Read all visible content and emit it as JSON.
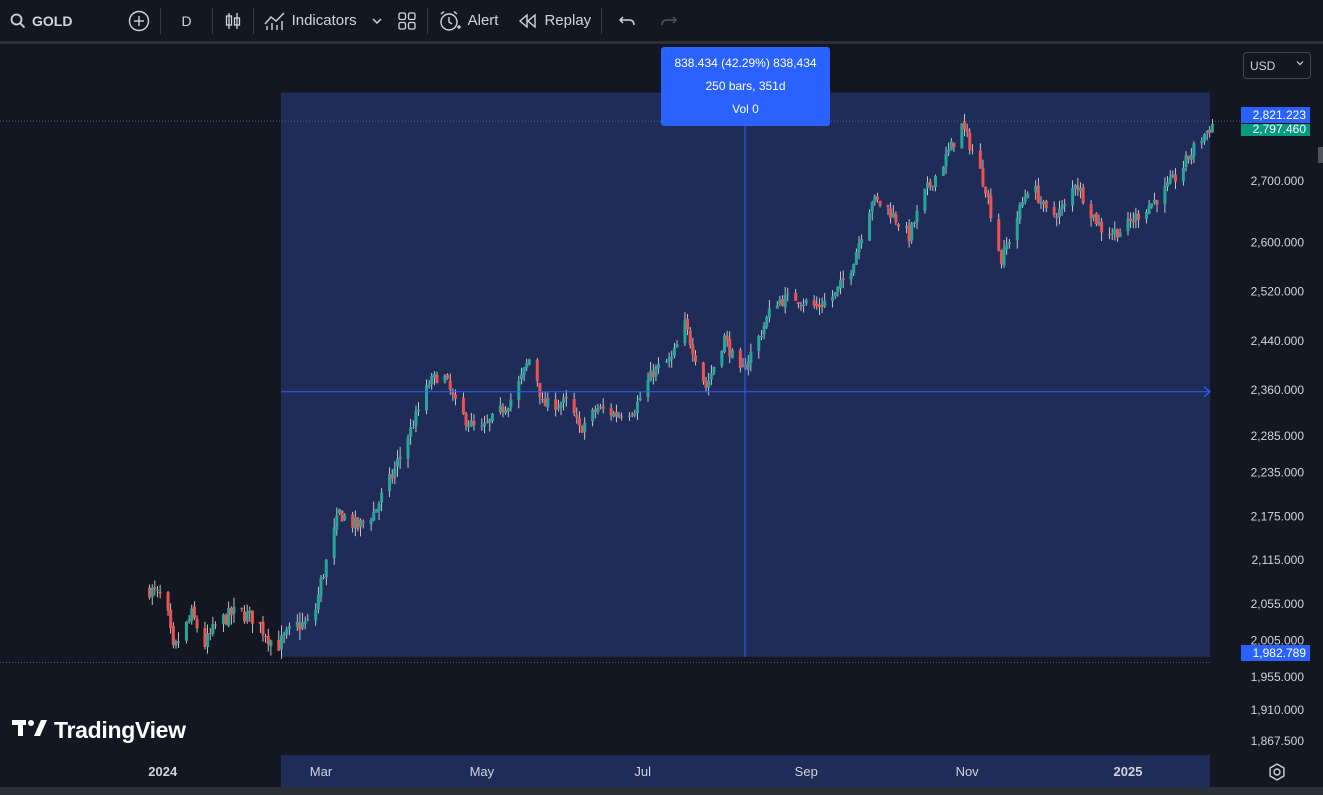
{
  "toolbar": {
    "symbol": "GOLD",
    "interval": "D",
    "indicators_label": "Indicators",
    "alert_label": "Alert",
    "replay_label": "Replay",
    "icons": [
      "search-icon",
      "plus-circle-icon",
      "candles-icon",
      "indicators-icon",
      "chevron-down-icon",
      "layout-grid-icon",
      "alert-clock-icon",
      "replay-icon",
      "undo-icon",
      "redo-icon"
    ]
  },
  "currency": "USD",
  "measure": {
    "line1": "838.434 (42.29%) 838,434",
    "line2": "250 bars, 351d",
    "line3": "Vol 0"
  },
  "price_tags": {
    "upper": "2,821.223",
    "last": "2,797.460",
    "lower": "1,982.789"
  },
  "logo_text": "TradingView",
  "colors": {
    "background": "#131722",
    "up": "#26a69a",
    "down": "#ef5350",
    "selection": "#1e2c57",
    "accent": "#2962ff"
  },
  "chart_data": {
    "type": "candlestick",
    "price_axis_ticks": [
      "2,700.000",
      "2,600.000",
      "2,520.000",
      "2,440.000",
      "2,360.000",
      "2,285.000",
      "2,235.000",
      "2,175.000",
      "2,115.000",
      "2,055.000",
      "2,005.000",
      "1,955.000",
      "1,910.000",
      "1,867.500"
    ],
    "time_axis_labels": [
      "2024",
      "Mar",
      "May",
      "Jul",
      "Sep",
      "Nov",
      "2025"
    ],
    "measure_range": {
      "from": 1982.789,
      "to": 2821.223
    },
    "close_path": [
      [
        "2023-12-27",
        2075
      ],
      [
        "2024-01-02",
        2060
      ],
      [
        "2024-01-05",
        1990
      ],
      [
        "2024-01-12",
        2040
      ],
      [
        "2024-01-17",
        2000
      ],
      [
        "2024-01-22",
        2030
      ],
      [
        "2024-01-29",
        2045
      ],
      [
        "2024-02-05",
        2035
      ],
      [
        "2024-02-13",
        1995
      ],
      [
        "2024-02-20",
        2025
      ],
      [
        "2024-02-27",
        2030
      ],
      [
        "2024-03-01",
        2085
      ],
      [
        "2024-03-08",
        2180
      ],
      [
        "2024-03-15",
        2160
      ],
      [
        "2024-03-21",
        2180
      ],
      [
        "2024-03-28",
        2230
      ],
      [
        "2024-04-04",
        2295
      ],
      [
        "2024-04-11",
        2370
      ],
      [
        "2024-04-16",
        2390
      ],
      [
        "2024-04-22",
        2325
      ],
      [
        "2024-04-30",
        2290
      ],
      [
        "2024-05-07",
        2320
      ],
      [
        "2024-05-13",
        2350
      ],
      [
        "2024-05-20",
        2420
      ],
      [
        "2024-05-24",
        2335
      ],
      [
        "2024-06-03",
        2340
      ],
      [
        "2024-06-07",
        2295
      ],
      [
        "2024-06-14",
        2330
      ],
      [
        "2024-06-21",
        2320
      ],
      [
        "2024-06-28",
        2330
      ],
      [
        "2024-07-05",
        2390
      ],
      [
        "2024-07-12",
        2410
      ],
      [
        "2024-07-17",
        2465
      ],
      [
        "2024-07-25",
        2365
      ],
      [
        "2024-08-01",
        2445
      ],
      [
        "2024-08-07",
        2385
      ],
      [
        "2024-08-14",
        2445
      ],
      [
        "2024-08-20",
        2505
      ],
      [
        "2024-08-28",
        2510
      ],
      [
        "2024-09-05",
        2495
      ],
      [
        "2024-09-12",
        2515
      ],
      [
        "2024-09-18",
        2560
      ],
      [
        "2024-09-26",
        2670
      ],
      [
        "2024-10-02",
        2655
      ],
      [
        "2024-10-10",
        2610
      ],
      [
        "2024-10-16",
        2680
      ],
      [
        "2024-10-23",
        2730
      ],
      [
        "2024-10-30",
        2790
      ],
      [
        "2024-11-04",
        2740
      ],
      [
        "2024-11-08",
        2690
      ],
      [
        "2024-11-14",
        2570
      ],
      [
        "2024-11-19",
        2630
      ],
      [
        "2024-11-25",
        2700
      ],
      [
        "2024-12-02",
        2640
      ],
      [
        "2024-12-09",
        2660
      ],
      [
        "2024-12-12",
        2700
      ],
      [
        "2024-12-18",
        2650
      ],
      [
        "2024-12-23",
        2615
      ],
      [
        "2024-12-30",
        2620
      ],
      [
        "2025-01-06",
        2650
      ],
      [
        "2025-01-13",
        2675
      ],
      [
        "2025-01-20",
        2710
      ],
      [
        "2025-01-27",
        2760
      ],
      [
        "2025-02-03",
        2797.46
      ]
    ]
  }
}
